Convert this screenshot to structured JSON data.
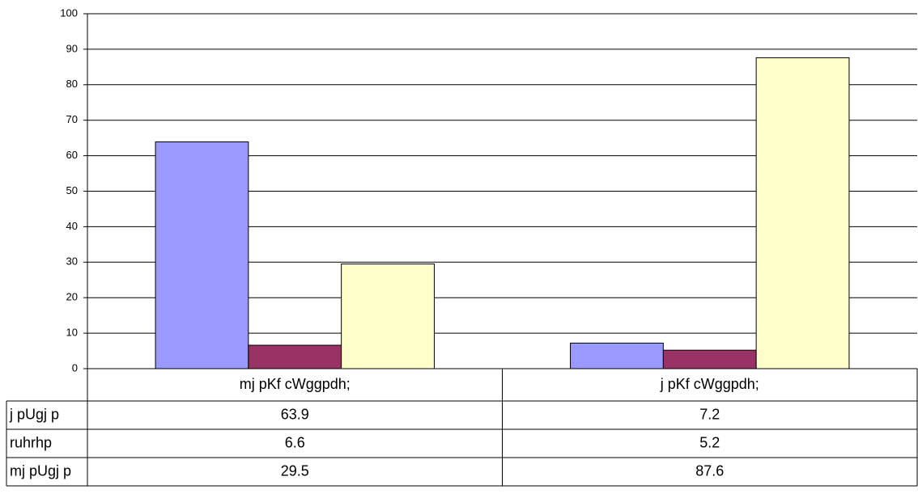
{
  "chart_data": {
    "type": "bar",
    "categories": [
      "mj pKf cWggpdh;",
      "j pKf cWggpdh;"
    ],
    "series": [
      {
        "name": "j pUgj p",
        "color": "#9999ff",
        "values": [
          63.9,
          7.2
        ]
      },
      {
        "name": "ruhrhp",
        "color": "#993366",
        "values": [
          6.6,
          5.2
        ]
      },
      {
        "name": "mj pUgj p",
        "color": "#ffffcc",
        "values": [
          29.5,
          87.6
        ]
      }
    ],
    "ylim": [
      0,
      100
    ],
    "yticks": [
      0,
      10,
      20,
      30,
      40,
      50,
      60,
      70,
      80,
      90,
      100
    ],
    "grid": true
  }
}
